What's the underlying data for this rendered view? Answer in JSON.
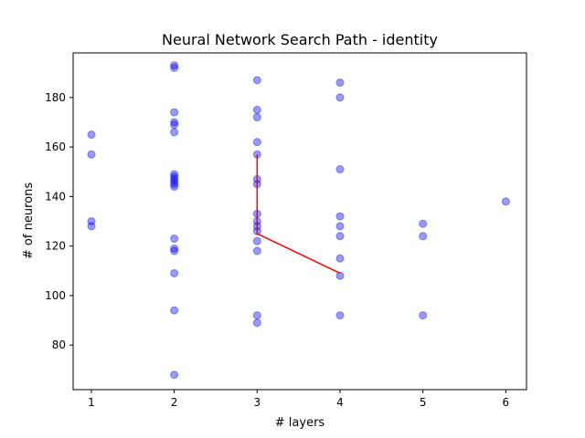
{
  "chart_data": {
    "type": "scatter",
    "title": "Neural Network Search Path - identity",
    "xlabel": "# layers",
    "ylabel": "# of neurons",
    "xlim": [
      0.78,
      6.25
    ],
    "ylim": [
      62,
      198
    ],
    "xticks": [
      1,
      2,
      3,
      4,
      5,
      6
    ],
    "yticks": [
      80,
      100,
      120,
      140,
      160,
      180
    ],
    "grid": false,
    "points_color": "#0000ff",
    "path_color": "#ff0000",
    "points": [
      {
        "x": 1,
        "y": 165
      },
      {
        "x": 1,
        "y": 157
      },
      {
        "x": 1,
        "y": 130
      },
      {
        "x": 1,
        "y": 128
      },
      {
        "x": 2,
        "y": 193
      },
      {
        "x": 2,
        "y": 192
      },
      {
        "x": 2,
        "y": 174
      },
      {
        "x": 2,
        "y": 170
      },
      {
        "x": 2,
        "y": 169
      },
      {
        "x": 2,
        "y": 166
      },
      {
        "x": 2,
        "y": 149
      },
      {
        "x": 2,
        "y": 148
      },
      {
        "x": 2,
        "y": 147
      },
      {
        "x": 2,
        "y": 146
      },
      {
        "x": 2,
        "y": 145
      },
      {
        "x": 2,
        "y": 144
      },
      {
        "x": 2,
        "y": 123
      },
      {
        "x": 2,
        "y": 119
      },
      {
        "x": 2,
        "y": 118
      },
      {
        "x": 2,
        "y": 109
      },
      {
        "x": 2,
        "y": 94
      },
      {
        "x": 2,
        "y": 68
      },
      {
        "x": 3,
        "y": 187
      },
      {
        "x": 3,
        "y": 175
      },
      {
        "x": 3,
        "y": 172
      },
      {
        "x": 3,
        "y": 162
      },
      {
        "x": 3,
        "y": 157
      },
      {
        "x": 3,
        "y": 147
      },
      {
        "x": 3,
        "y": 145
      },
      {
        "x": 3,
        "y": 133
      },
      {
        "x": 3,
        "y": 130
      },
      {
        "x": 3,
        "y": 128
      },
      {
        "x": 3,
        "y": 126
      },
      {
        "x": 3,
        "y": 122
      },
      {
        "x": 3,
        "y": 118
      },
      {
        "x": 3,
        "y": 92
      },
      {
        "x": 3,
        "y": 89
      },
      {
        "x": 4,
        "y": 186
      },
      {
        "x": 4,
        "y": 180
      },
      {
        "x": 4,
        "y": 151
      },
      {
        "x": 4,
        "y": 132
      },
      {
        "x": 4,
        "y": 128
      },
      {
        "x": 4,
        "y": 124
      },
      {
        "x": 4,
        "y": 115
      },
      {
        "x": 4,
        "y": 108
      },
      {
        "x": 4,
        "y": 92
      },
      {
        "x": 5,
        "y": 129
      },
      {
        "x": 5,
        "y": 124
      },
      {
        "x": 5,
        "y": 92
      },
      {
        "x": 6,
        "y": 138
      }
    ],
    "path": [
      {
        "x": 3,
        "y": 157
      },
      {
        "x": 3,
        "y": 125
      },
      {
        "x": 4,
        "y": 109
      }
    ]
  }
}
